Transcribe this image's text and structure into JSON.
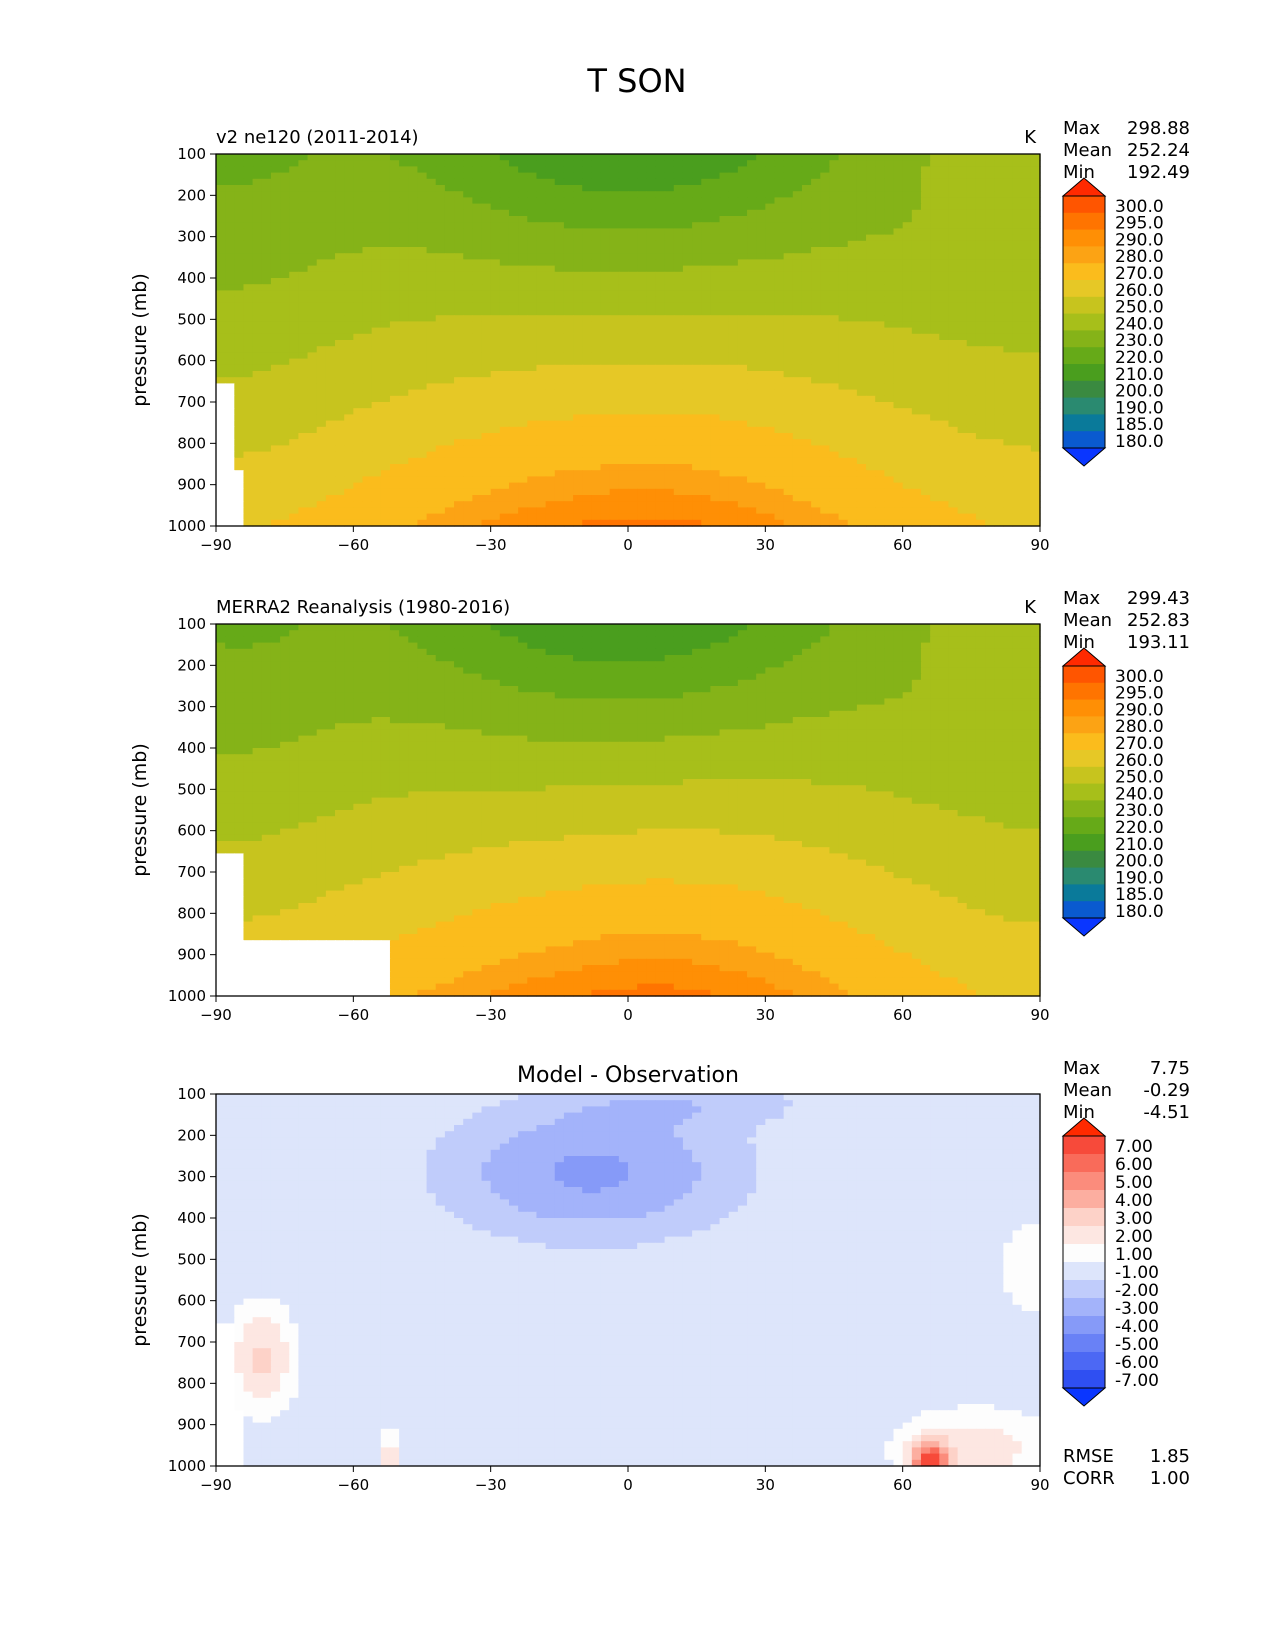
{
  "figure_title": "T SON",
  "chart_data": [
    {
      "type": "contour",
      "title_left": "v2 ne120 (2011-2014)",
      "units": "K",
      "ylabel": "pressure (mb)",
      "x_ticks": [
        "−90",
        "−60",
        "−30",
        "0",
        "30",
        "60",
        "90"
      ],
      "y_ticks": [
        "100",
        "200",
        "300",
        "400",
        "500",
        "600",
        "700",
        "800",
        "900",
        "1000"
      ],
      "xlim": [
        -90,
        90
      ],
      "ylim": [
        1000,
        100
      ],
      "stats": [
        {
          "label": "Max",
          "value": "298.88"
        },
        {
          "label": "Mean",
          "value": "252.24"
        },
        {
          "label": "Min",
          "value": "192.49"
        }
      ],
      "levels": [
        "300.0",
        "295.0",
        "290.0",
        "280.0",
        "270.0",
        "260.0",
        "250.0",
        "240.0",
        "230.0",
        "220.0",
        "210.0",
        "200.0",
        "190.0",
        "185.0",
        "180.0"
      ],
      "colors": [
        "#ff2a00",
        "#ff5500",
        "#ff7400",
        "#ff8f05",
        "#fca314",
        "#fbbc1c",
        "#e6c826",
        "#c7c41e",
        "#a7bf1a",
        "#85b318",
        "#66aa18",
        "#4a9e1e",
        "#3a8a40",
        "#2a8a70",
        "#0a7a9a",
        "#0a5ad0",
        "#0a36ff"
      ]
    },
    {
      "type": "contour",
      "title_left": "MERRA2 Reanalysis (1980-2016)",
      "units": "K",
      "ylabel": "pressure (mb)",
      "x_ticks": [
        "−90",
        "−60",
        "−30",
        "0",
        "30",
        "60",
        "90"
      ],
      "y_ticks": [
        "100",
        "200",
        "300",
        "400",
        "500",
        "600",
        "700",
        "800",
        "900",
        "1000"
      ],
      "xlim": [
        -90,
        90
      ],
      "ylim": [
        1000,
        100
      ],
      "stats": [
        {
          "label": "Max",
          "value": "299.43"
        },
        {
          "label": "Mean",
          "value": "252.83"
        },
        {
          "label": "Min",
          "value": "193.11"
        }
      ],
      "levels": [
        "300.0",
        "295.0",
        "290.0",
        "280.0",
        "270.0",
        "260.0",
        "250.0",
        "240.0",
        "230.0",
        "220.0",
        "210.0",
        "200.0",
        "190.0",
        "185.0",
        "180.0"
      ],
      "colors": [
        "#ff2a00",
        "#ff5500",
        "#ff7400",
        "#ff8f05",
        "#fca314",
        "#fbbc1c",
        "#e6c826",
        "#c7c41e",
        "#a7bf1a",
        "#85b318",
        "#66aa18",
        "#4a9e1e",
        "#3a8a40",
        "#2a8a70",
        "#0a7a9a",
        "#0a5ad0",
        "#0a36ff"
      ]
    },
    {
      "type": "contour",
      "title_center": "Model - Observation",
      "ylabel": "pressure (mb)",
      "x_ticks": [
        "−90",
        "−60",
        "−30",
        "0",
        "30",
        "60",
        "90"
      ],
      "y_ticks": [
        "100",
        "200",
        "300",
        "400",
        "500",
        "600",
        "700",
        "800",
        "900",
        "1000"
      ],
      "xlim": [
        -90,
        90
      ],
      "ylim": [
        1000,
        100
      ],
      "stats": [
        {
          "label": "Max",
          "value": "7.75"
        },
        {
          "label": "Mean",
          "value": "-0.29"
        },
        {
          "label": "Min",
          "value": "-4.51"
        }
      ],
      "extra_stats": [
        {
          "label": "RMSE",
          "value": "1.85"
        },
        {
          "label": "CORR",
          "value": "1.00"
        }
      ],
      "levels": [
        "7.00",
        "6.00",
        "5.00",
        "4.00",
        "3.00",
        "2.00",
        "1.00",
        "-1.00",
        "-2.00",
        "-3.00",
        "-4.00",
        "-5.00",
        "-6.00",
        "-7.00"
      ],
      "colors": [
        "#ff2a00",
        "#f74a3a",
        "#f96b5a",
        "#fb8c7c",
        "#fcaea0",
        "#fdd2c8",
        "#fde7e2",
        "#fdfdfd",
        "#dde5fb",
        "#c0ccfb",
        "#a3b3fa",
        "#869af8",
        "#6981f6",
        "#4c68f4",
        "#2f4ff2",
        "#0a36ff"
      ]
    }
  ]
}
